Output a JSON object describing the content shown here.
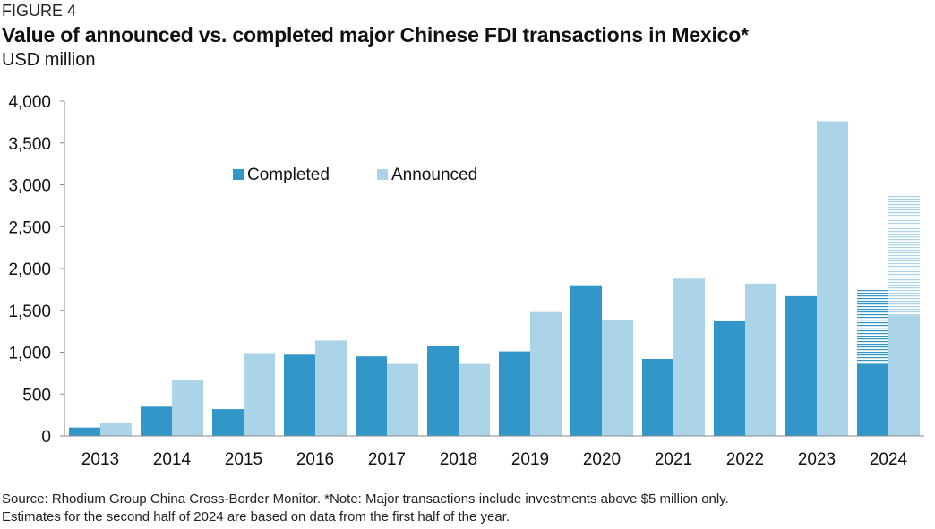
{
  "figure_label": "FIGURE 4",
  "chart_data": {
    "type": "bar",
    "title": "Value of announced vs. completed major Chinese FDI transactions in Mexico*",
    "subtitle": "USD million",
    "xlabel": "",
    "ylabel": "",
    "ylim": [
      0,
      4000
    ],
    "yticks": [
      0,
      500,
      1000,
      1500,
      2000,
      2500,
      3000,
      3500,
      4000
    ],
    "ytick_labels": [
      "0",
      "500",
      "1,000",
      "1,500",
      "2,000",
      "2,500",
      "3,000",
      "3,500",
      "4,000"
    ],
    "categories": [
      "2013",
      "2014",
      "2015",
      "2016",
      "2017",
      "2018",
      "2019",
      "2020",
      "2021",
      "2022",
      "2023",
      "2024"
    ],
    "series": [
      {
        "name": "Completed",
        "color": "#3396c8",
        "values": [
          100,
          350,
          320,
          970,
          950,
          1080,
          1010,
          1800,
          920,
          1370,
          1670,
          860
        ]
      },
      {
        "name": "Announced",
        "color": "#abd4e8",
        "values": [
          150,
          670,
          990,
          1140,
          860,
          860,
          1480,
          1390,
          1880,
          1820,
          3760,
          1440
        ]
      }
    ],
    "estimates": {
      "category": "2024",
      "Completed": 1760,
      "Announced": 2880
    },
    "legend_position": "top-center",
    "grid": false
  },
  "source_note": [
    "Source: Rhodium Group China Cross-Border Monitor. *Note: Major transactions include investments above $5 million only.",
    "Estimates for the second half of 2024 are based on data from the first half of the year."
  ]
}
